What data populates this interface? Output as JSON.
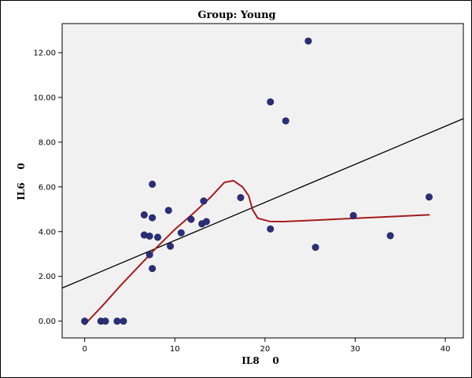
{
  "chart_data": {
    "type": "scatter",
    "title": "Group:  Young",
    "xlabel": "IL8    0",
    "ylabel": "IL6    0",
    "xlim": [
      -2.5,
      42
    ],
    "ylim": [
      -0.75,
      13.3
    ],
    "x_ticks": [
      0,
      10,
      20,
      30,
      40
    ],
    "x_tick_labels": [
      "0",
      "10",
      "20",
      "30",
      "40"
    ],
    "y_ticks": [
      0,
      2,
      4,
      6,
      8,
      10,
      12
    ],
    "y_tick_labels": [
      "0.00",
      "2.00",
      "4.00",
      "6.00",
      "8.00",
      "10.00",
      "12.00"
    ],
    "grid": false,
    "legend": "none",
    "series": [
      {
        "type": "scatter",
        "color": "#2b2f7a",
        "points": [
          [
            0.0,
            0.0
          ],
          [
            1.8,
            0.0
          ],
          [
            2.3,
            0.0
          ],
          [
            3.6,
            0.0
          ],
          [
            4.3,
            0.0
          ],
          [
            6.6,
            4.75
          ],
          [
            6.6,
            3.85
          ],
          [
            7.2,
            3.8
          ],
          [
            7.2,
            2.97
          ],
          [
            7.5,
            6.12
          ],
          [
            7.5,
            4.62
          ],
          [
            7.5,
            2.35
          ],
          [
            8.1,
            3.75
          ],
          [
            9.3,
            4.95
          ],
          [
            9.5,
            3.35
          ],
          [
            10.7,
            3.95
          ],
          [
            11.8,
            4.55
          ],
          [
            13.0,
            4.35
          ],
          [
            13.2,
            5.37
          ],
          [
            13.5,
            4.45
          ],
          [
            17.3,
            5.52
          ],
          [
            20.6,
            9.8
          ],
          [
            20.6,
            4.12
          ],
          [
            22.3,
            8.95
          ],
          [
            24.8,
            12.52
          ],
          [
            25.6,
            3.3
          ],
          [
            29.8,
            4.72
          ],
          [
            33.9,
            3.82
          ],
          [
            38.2,
            5.55
          ]
        ]
      },
      {
        "type": "line",
        "name": "linear fit",
        "color": "#000000",
        "points": [
          [
            -2.5,
            1.48
          ],
          [
            42.0,
            9.05
          ]
        ]
      },
      {
        "type": "line",
        "name": "loess fit",
        "color": "#a51c1c",
        "points": [
          [
            0.0,
            -0.15
          ],
          [
            2.0,
            0.7
          ],
          [
            4.0,
            1.6
          ],
          [
            6.0,
            2.45
          ],
          [
            8.0,
            3.3
          ],
          [
            10.0,
            4.1
          ],
          [
            12.0,
            4.8
          ],
          [
            14.0,
            5.55
          ],
          [
            15.5,
            6.2
          ],
          [
            16.5,
            6.28
          ],
          [
            17.5,
            6.0
          ],
          [
            18.2,
            5.6
          ],
          [
            18.6,
            5.0
          ],
          [
            19.2,
            4.6
          ],
          [
            20.5,
            4.46
          ],
          [
            22.0,
            4.45
          ],
          [
            25.0,
            4.5
          ],
          [
            30.0,
            4.6
          ],
          [
            38.2,
            4.75
          ]
        ]
      }
    ]
  }
}
